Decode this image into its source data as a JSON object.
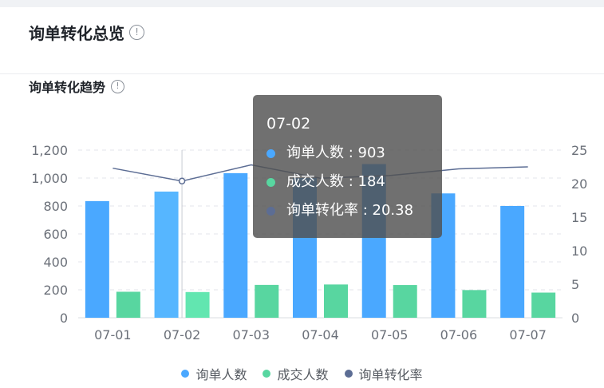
{
  "panel": {
    "title": "询单转化总览",
    "info_glyph": "!",
    "section_title": "询单转化趋势"
  },
  "tooltip": {
    "title": "07-02",
    "rows": [
      {
        "label": "询单人数 : 903",
        "color": "#4aa8ff"
      },
      {
        "label": "成交人数 : 184",
        "color": "#58d6a0"
      },
      {
        "label": "询单转化率 : 20.38",
        "color": "#5c6d94"
      }
    ]
  },
  "legend": [
    {
      "label": "询单人数",
      "color": "#4aa8ff"
    },
    {
      "label": "成交人数",
      "color": "#58d6a0"
    },
    {
      "label": "询单转化率",
      "color": "#5c6d94"
    }
  ],
  "chart_data": {
    "type": "bar",
    "title": "",
    "categories": [
      "07-01",
      "07-02",
      "07-03",
      "07-04",
      "07-05",
      "07-06",
      "07-07"
    ],
    "series": [
      {
        "name": "询单人数",
        "type": "bar",
        "axis": "left",
        "color": "#4aa8ff",
        "values": [
          835,
          903,
          1035,
          1000,
          1100,
          890,
          800
        ]
      },
      {
        "name": "成交人数",
        "type": "bar",
        "axis": "left",
        "color": "#58d6a0",
        "values": [
          186,
          184,
          235,
          238,
          234,
          198,
          180
        ]
      },
      {
        "name": "询单转化率",
        "type": "line",
        "axis": "right",
        "color": "#5c6d94",
        "values": [
          22.3,
          20.38,
          22.8,
          20.8,
          21.2,
          22.2,
          22.5
        ]
      }
    ],
    "ylim_left": [
      0,
      1200
    ],
    "yticks_left": [
      "0",
      "200",
      "400",
      "600",
      "800",
      "1,000",
      "1,200"
    ],
    "ylim_right": [
      0,
      25
    ],
    "yticks_right": [
      "0",
      "5",
      "10",
      "15",
      "20",
      "25"
    ],
    "highlighted_category": "07-02",
    "grid": "dashed-horizontal",
    "legend_position": "bottom-center"
  }
}
